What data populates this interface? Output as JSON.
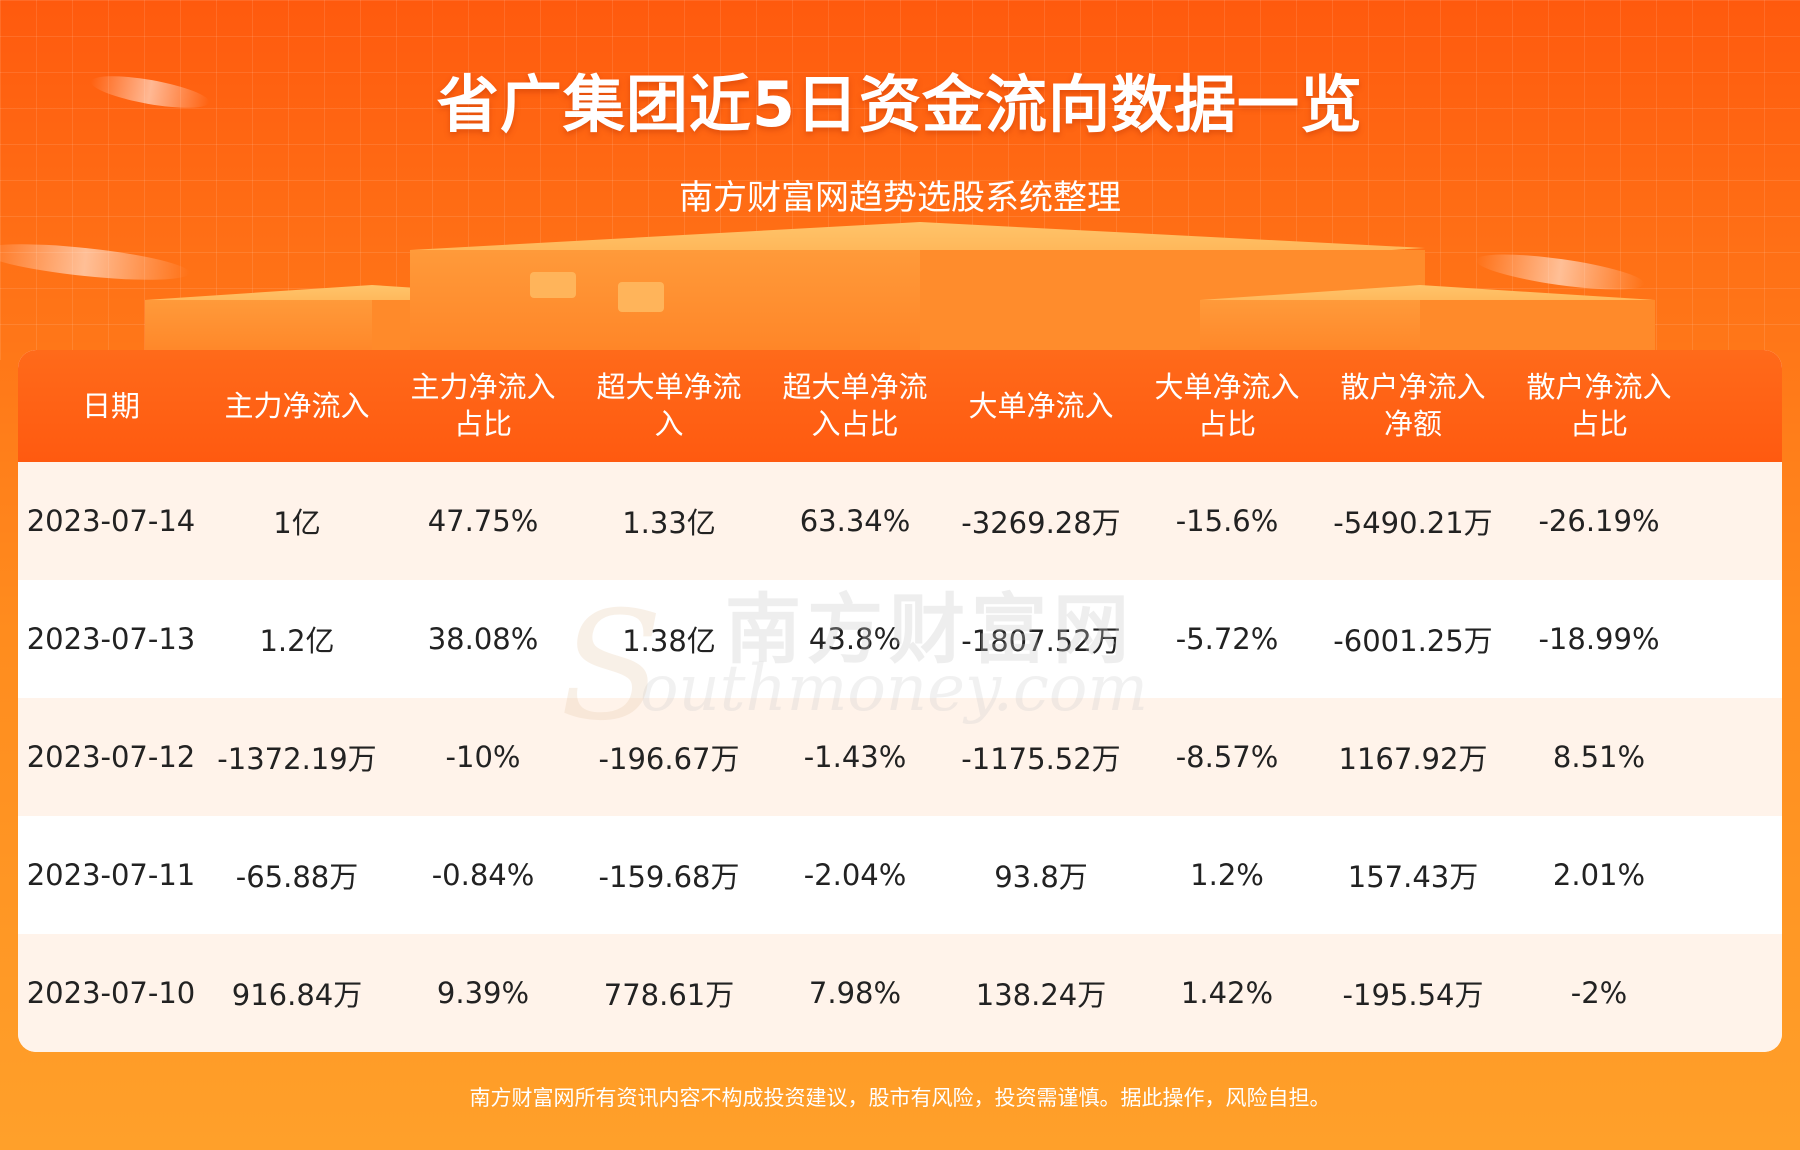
{
  "header": {
    "title": "省广集团近5日资金流向数据一览",
    "subtitle": "南方财富网趋势选股系统整理"
  },
  "table": {
    "columns": [
      [
        "日期"
      ],
      [
        "主力净流入"
      ],
      [
        "主力净流入",
        "占比"
      ],
      [
        "超大单净流",
        "入"
      ],
      [
        "超大单净流",
        "入占比"
      ],
      [
        "大单净流入"
      ],
      [
        "大单净流入",
        "占比"
      ],
      [
        "散户净流入",
        "净额"
      ],
      [
        "散户净流入",
        "占比"
      ]
    ],
    "rows": [
      [
        "2023-07-14",
        "1亿",
        "47.75%",
        "1.33亿",
        "63.34%",
        "-3269.28万",
        "-15.6%",
        "-5490.21万",
        "-26.19%"
      ],
      [
        "2023-07-13",
        "1.2亿",
        "38.08%",
        "1.38亿",
        "43.8%",
        "-1807.52万",
        "-5.72%",
        "-6001.25万",
        "-18.99%"
      ],
      [
        "2023-07-12",
        "-1372.19万",
        "-10%",
        "-196.67万",
        "-1.43%",
        "-1175.52万",
        "-8.57%",
        "1167.92万",
        "8.51%"
      ],
      [
        "2023-07-11",
        "-65.88万",
        "-0.84%",
        "-159.68万",
        "-2.04%",
        "93.8万",
        "1.2%",
        "157.43万",
        "2.01%"
      ],
      [
        "2023-07-10",
        "916.84万",
        "9.39%",
        "778.61万",
        "7.98%",
        "138.24万",
        "1.42%",
        "-195.54万",
        "-2%"
      ]
    ]
  },
  "watermark": {
    "cn": "南方财富网",
    "en": "outhmoney.com",
    "letter": "S"
  },
  "footer": {
    "disclaimer": "南方财富网所有资讯内容不构成投资建议，股市有风险，投资需谨慎。据此操作，风险自担。"
  },
  "colors": {
    "header_orange": "#ff5a10",
    "row_tint": "#fff3ea",
    "text": "#222222"
  }
}
